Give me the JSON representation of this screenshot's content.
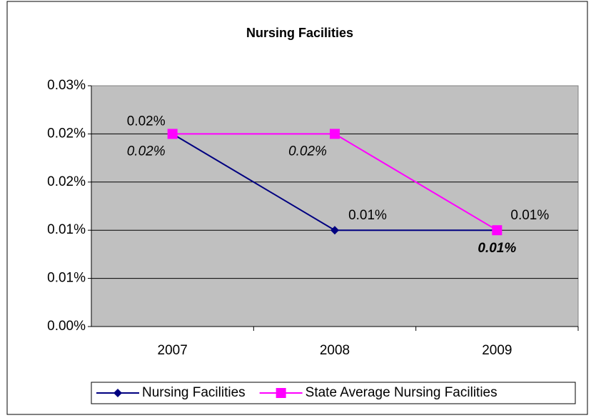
{
  "chart_data": {
    "type": "line",
    "title": "Nursing Facilities",
    "categories": [
      "2007",
      "2008",
      "2009"
    ],
    "series": [
      {
        "name": "Nursing Facilities",
        "color": "#000080",
        "marker": "diamond",
        "values": [
          0.024,
          0.012,
          0.012
        ],
        "value_labels": [
          "0.02%",
          "0.01%",
          "0.01%"
        ]
      },
      {
        "name": "State Average Nursing Facilities",
        "color": "#ff00ff",
        "marker": "square",
        "values": [
          0.024,
          0.024,
          0.012
        ],
        "value_labels": [
          "0.02%",
          "0.02%",
          "0.01%"
        ]
      }
    ],
    "ylim": [
      0,
      0.03
    ],
    "yticks": [
      {
        "value": 0,
        "label": "0.00%"
      },
      {
        "value": 0.006,
        "label": "0.01%"
      },
      {
        "value": 0.012,
        "label": "0.01%"
      },
      {
        "value": 0.018,
        "label": "0.02%"
      },
      {
        "value": 0.024,
        "label": "0.02%"
      },
      {
        "value": 0.03,
        "label": "0.03%"
      }
    ],
    "grid": true,
    "legend": "bottom"
  }
}
